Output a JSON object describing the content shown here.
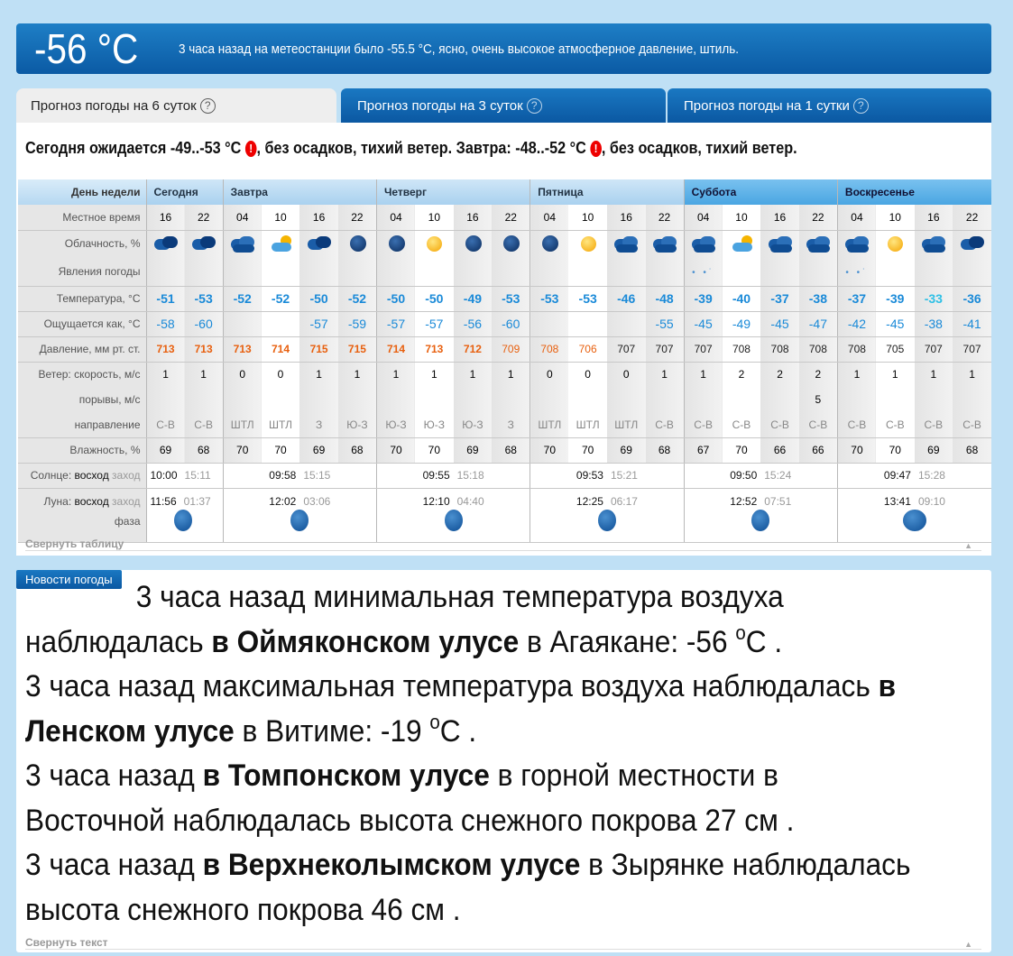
{
  "current": {
    "temp": "-56 °C",
    "description": "3 часа назад на метеостанции было -55.5 °C, ясно, очень высокое атмосферное давление, штиль."
  },
  "tabs": [
    {
      "label": "Прогноз погоды на 6 суток",
      "help": "?",
      "active": true
    },
    {
      "label": "Прогноз погоды на 3 суток",
      "help": "?",
      "active": false
    },
    {
      "label": "Прогноз погоды на 1 сутки",
      "help": "?",
      "active": false
    }
  ],
  "summary": {
    "part1": "Сегодня ожидается -49..-53 °C ",
    "warn": "!",
    "part2": ", без осадков, тихий ветер. Завтра: -48..-52 °C ",
    "part3": ", без осадков, тихий ветер."
  },
  "table": {
    "labels": {
      "day": "День недели",
      "time": "Местное время",
      "cloud": "Облачность, %",
      "phen": "Явления погоды",
      "temp": "Температура, °C",
      "feels": "Ощущается как, °C",
      "pressure": "Давление, мм рт. ст.",
      "wind_speed": "Ветер: скорость, м/с",
      "gusts": "порывы, м/с",
      "direction": "направление",
      "humidity": "Влажность, %",
      "sun_prefix": "Солнце: ",
      "rise": "восход",
      "set": "заход",
      "moon_prefix": "Луна: ",
      "phase": "фаза"
    },
    "days": [
      {
        "name": "Сегодня",
        "sunrise": "10:00",
        "sunset": "15:11",
        "moonrise": "11:56",
        "moonset": "01:37",
        "moon_phase": "waxing-gibbous"
      },
      {
        "name": "Завтра",
        "sunrise": "09:58",
        "sunset": "15:15",
        "moonrise": "12:02",
        "moonset": "03:06",
        "moon_phase": "waxing-gibbous"
      },
      {
        "name": "Четверг",
        "sunrise": "09:55",
        "sunset": "15:18",
        "moonrise": "12:10",
        "moonset": "04:40",
        "moon_phase": "waxing-gibbous"
      },
      {
        "name": "Пятница",
        "sunrise": "09:53",
        "sunset": "15:21",
        "moonrise": "12:25",
        "moonset": "06:17",
        "moon_phase": "waxing-gibbous"
      },
      {
        "name": "Суббота",
        "sunrise": "09:50",
        "sunset": "15:24",
        "moonrise": "12:52",
        "moonset": "07:51",
        "moon_phase": "waxing-gibbous"
      },
      {
        "name": "Воскресенье",
        "sunrise": "09:47",
        "sunset": "15:28",
        "moonrise": "13:41",
        "moonset": "09:10",
        "moon_phase": "full"
      }
    ],
    "day_columns": [
      2,
      4,
      4,
      4,
      4,
      4
    ],
    "times": [
      "16",
      "22",
      "04",
      "10",
      "16",
      "22",
      "04",
      "10",
      "16",
      "22",
      "04",
      "10",
      "16",
      "22",
      "04",
      "10",
      "16",
      "22",
      "04",
      "10",
      "16",
      "22"
    ],
    "cloud": [
      "night-cloudy",
      "night-cloudy",
      "cloudy",
      "partly-cloudy-day",
      "night-cloudy",
      "clear-night",
      "clear-night",
      "sun",
      "clear-night",
      "clear-night",
      "clear-night",
      "sun",
      "cloudy",
      "cloudy",
      "cloudy",
      "partly-cloudy-day",
      "overcast",
      "cloudy",
      "cloudy",
      "sun",
      "cloudy",
      "night-cloudy"
    ],
    "phenomena": [
      "",
      "",
      "",
      "",
      "",
      "",
      "",
      "",
      "",
      "",
      "",
      "",
      "",
      "",
      "light-snow",
      "",
      "",
      "",
      "light-snow",
      "",
      "",
      ""
    ],
    "temp": [
      "-51",
      "-53",
      "-52",
      "-52",
      "-50",
      "-52",
      "-50",
      "-50",
      "-49",
      "-53",
      "-53",
      "-53",
      "-46",
      "-48",
      "-39",
      "-40",
      "-37",
      "-38",
      "-37",
      "-39",
      "-33",
      "-36"
    ],
    "feels": [
      "-58",
      "-60",
      "",
      "",
      "-57",
      "-59",
      "-57",
      "-57",
      "-56",
      "-60",
      "",
      "",
      "",
      "-55",
      "-45",
      "-49",
      "-45",
      "-47",
      "-42",
      "-45",
      "-38",
      "-41"
    ],
    "pressure": [
      "713",
      "713",
      "713",
      "714",
      "715",
      "715",
      "714",
      "713",
      "712",
      "709",
      "708",
      "706",
      "707",
      "707",
      "707",
      "708",
      "708",
      "708",
      "708",
      "705",
      "707",
      "707"
    ],
    "pressure_level": [
      "very-high",
      "very-high",
      "very-high",
      "very-high",
      "very-high",
      "very-high",
      "very-high",
      "very-high",
      "very-high",
      "high",
      "high",
      "high",
      "normal",
      "normal",
      "normal",
      "normal",
      "normal",
      "normal",
      "normal",
      "normal",
      "normal",
      "normal"
    ],
    "wind_speed": [
      "1",
      "1",
      "0",
      "0",
      "1",
      "1",
      "1",
      "1",
      "1",
      "1",
      "0",
      "0",
      "0",
      "1",
      "1",
      "2",
      "2",
      "2",
      "1",
      "1",
      "1",
      "1"
    ],
    "gusts": [
      "",
      "",
      "",
      "",
      "",
      "",
      "",
      "",
      "",
      "",
      "",
      "",
      "",
      "",
      "",
      "",
      "",
      "5",
      "",
      "",
      "",
      ""
    ],
    "direction": [
      "С-В",
      "С-В",
      "ШТЛ",
      "ШТЛ",
      "З",
      "Ю-З",
      "Ю-З",
      "Ю-З",
      "Ю-З",
      "З",
      "ШТЛ",
      "ШТЛ",
      "ШТЛ",
      "С-В",
      "С-В",
      "С-В",
      "С-В",
      "С-В",
      "С-В",
      "С-В",
      "С-В",
      "С-В"
    ],
    "humidity": [
      "69",
      "68",
      "70",
      "70",
      "69",
      "68",
      "70",
      "70",
      "69",
      "68",
      "70",
      "70",
      "69",
      "68",
      "67",
      "70",
      "66",
      "66",
      "70",
      "70",
      "69",
      "68"
    ],
    "collapse_label": "Свернуть таблицу"
  },
  "news": {
    "tag": "Новости погоды",
    "items": [
      {
        "pre": "3 часа назад минимальная температура воздуха наблюдалась ",
        "bold": "в Оймяконском улусе",
        "post": " в Агаякане: -56 ",
        "sup": "о",
        "tail": "С ."
      },
      {
        "pre": "3 часа назад максимальная температура воздуха наблюдалась ",
        "bold": "в Ленском улусе",
        "post": " в Витиме: -19 ",
        "sup": "о",
        "tail": "С ."
      },
      {
        "pre": "3 часа назад ",
        "bold": "в Томпонском улусе",
        "post": " в горной местности в Восточной наблюдалась высота снежного покрова 27 см .",
        "sup": "",
        "tail": ""
      },
      {
        "pre": "3 часа назад ",
        "bold": "в Верхнеколымском улусе",
        "post": " в Зырянке наблюдалась высота снежного покрова 46 см .",
        "sup": "",
        "tail": ""
      }
    ],
    "collapse_label": "Свернуть текст"
  },
  "colors": {
    "accent": "#0b5aa4",
    "temp": "#1a8ad8",
    "pressure_high": "#e8600f",
    "warning": "#ee0000"
  }
}
